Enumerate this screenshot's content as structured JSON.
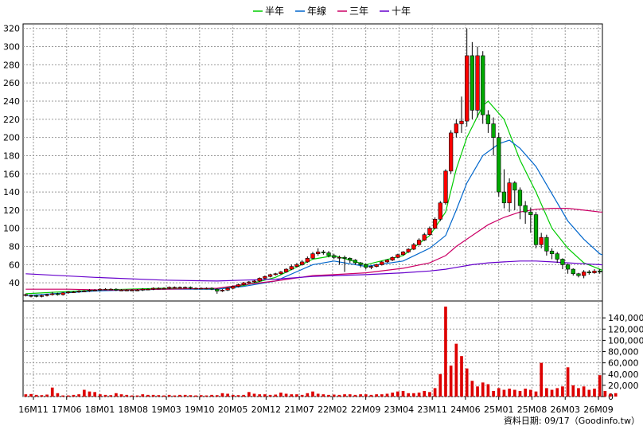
{
  "chart_data": [
    {
      "type": "candlestick",
      "title": "",
      "ylim": [
        20,
        325
      ],
      "y_ticks": [
        40,
        60,
        80,
        100,
        120,
        140,
        160,
        180,
        200,
        220,
        240,
        260,
        280,
        300,
        320
      ],
      "x_ticks": [
        "16M11",
        "17M06",
        "18M01",
        "18M08",
        "19M03",
        "19M10",
        "20M05",
        "20M12",
        "21M07",
        "22M02",
        "22M09",
        "23M04",
        "23M11",
        "24M06",
        "25M01",
        "25M08",
        "26M03",
        "26M09"
      ],
      "grid": true,
      "legend": {
        "position": "top-center",
        "entries": [
          {
            "name": "半年",
            "color": "#00cc00"
          },
          {
            "name": "年線",
            "color": "#0066cc"
          },
          {
            "name": "三年",
            "color": "#cc0066"
          },
          {
            "name": "十年",
            "color": "#6600cc"
          }
        ]
      },
      "candles": [
        [
          27,
          27,
          28,
          25
        ],
        [
          26,
          26,
          27,
          24
        ],
        [
          26,
          25,
          27,
          24
        ],
        [
          25,
          26,
          27,
          24
        ],
        [
          26,
          27,
          28,
          25
        ],
        [
          27,
          28,
          30,
          26
        ],
        [
          28,
          27,
          29,
          26
        ],
        [
          27,
          29,
          30,
          26
        ],
        [
          29,
          30,
          31,
          28
        ],
        [
          30,
          30,
          31,
          29
        ],
        [
          30,
          31,
          32,
          29
        ],
        [
          31,
          31,
          32,
          30
        ],
        [
          31,
          32,
          33,
          30
        ],
        [
          32,
          32,
          33,
          31
        ],
        [
          32,
          33,
          34,
          31
        ],
        [
          33,
          33,
          34,
          32
        ],
        [
          33,
          33,
          34,
          32
        ],
        [
          33,
          32,
          34,
          31
        ],
        [
          32,
          32,
          33,
          31
        ],
        [
          32,
          32,
          33,
          31
        ],
        [
          32,
          32,
          33,
          31
        ],
        [
          32,
          32,
          33,
          31
        ],
        [
          32,
          33,
          34,
          31
        ],
        [
          33,
          33,
          34,
          32
        ],
        [
          33,
          34,
          35,
          32
        ],
        [
          34,
          34,
          35,
          33
        ],
        [
          34,
          34,
          35,
          33
        ],
        [
          34,
          35,
          36,
          33
        ],
        [
          35,
          35,
          36,
          34
        ],
        [
          35,
          35,
          36,
          34
        ],
        [
          35,
          35,
          36,
          34
        ],
        [
          35,
          34,
          36,
          33
        ],
        [
          34,
          34,
          35,
          33
        ],
        [
          34,
          34,
          35,
          33
        ],
        [
          34,
          34,
          35,
          33
        ],
        [
          34,
          33,
          35,
          32
        ],
        [
          33,
          31,
          34,
          28
        ],
        [
          31,
          32,
          33,
          30
        ],
        [
          32,
          34,
          35,
          31
        ],
        [
          34,
          36,
          37,
          33
        ],
        [
          36,
          38,
          39,
          35
        ],
        [
          38,
          40,
          41,
          37
        ],
        [
          40,
          41,
          42,
          39
        ],
        [
          41,
          42,
          43,
          40
        ],
        [
          42,
          45,
          46,
          41
        ],
        [
          45,
          47,
          48,
          44
        ],
        [
          47,
          49,
          50,
          46
        ],
        [
          49,
          50,
          51,
          48
        ],
        [
          50,
          52,
          53,
          49
        ],
        [
          52,
          55,
          56,
          51
        ],
        [
          55,
          58,
          60,
          54
        ],
        [
          58,
          60,
          62,
          57
        ],
        [
          60,
          63,
          65,
          59
        ],
        [
          63,
          67,
          69,
          62
        ],
        [
          67,
          72,
          74,
          66
        ],
        [
          72,
          74,
          78,
          70
        ],
        [
          74,
          73,
          76,
          71
        ],
        [
          73,
          70,
          75,
          68
        ],
        [
          70,
          68,
          72,
          66
        ],
        [
          68,
          68,
          70,
          60
        ],
        [
          68,
          67,
          70,
          52
        ],
        [
          67,
          65,
          68,
          62
        ],
        [
          65,
          62,
          66,
          60
        ],
        [
          62,
          60,
          63,
          57
        ],
        [
          60,
          57,
          61,
          55
        ],
        [
          57,
          58,
          59,
          55
        ],
        [
          58,
          60,
          61,
          57
        ],
        [
          60,
          63,
          64,
          59
        ],
        [
          63,
          65,
          66,
          62
        ],
        [
          65,
          68,
          69,
          64
        ],
        [
          68,
          71,
          72,
          67
        ],
        [
          71,
          74,
          75,
          70
        ],
        [
          74,
          77,
          78,
          73
        ],
        [
          77,
          82,
          84,
          76
        ],
        [
          82,
          87,
          89,
          81
        ],
        [
          87,
          93,
          95,
          86
        ],
        [
          93,
          100,
          102,
          92
        ],
        [
          100,
          110,
          112,
          99
        ],
        [
          110,
          128,
          130,
          108
        ],
        [
          128,
          163,
          165,
          126
        ],
        [
          163,
          205,
          208,
          160
        ],
        [
          205,
          215,
          220,
          200
        ],
        [
          215,
          218,
          245,
          205
        ],
        [
          218,
          290,
          320,
          212
        ],
        [
          290,
          230,
          305,
          220
        ],
        [
          230,
          290,
          300,
          222
        ],
        [
          290,
          225,
          295,
          215
        ],
        [
          225,
          215,
          230,
          205
        ],
        [
          215,
          200,
          222,
          180
        ],
        [
          200,
          140,
          205,
          135
        ],
        [
          140,
          128,
          165,
          122
        ],
        [
          128,
          150,
          155,
          118
        ],
        [
          150,
          142,
          152,
          120
        ],
        [
          142,
          125,
          145,
          110
        ],
        [
          125,
          118,
          130,
          105
        ],
        [
          118,
          115,
          123,
          95
        ],
        [
          115,
          82,
          118,
          78
        ],
        [
          82,
          90,
          95,
          78
        ],
        [
          90,
          75,
          93,
          70
        ],
        [
          75,
          72,
          78,
          66
        ],
        [
          72,
          66,
          74,
          62
        ],
        [
          66,
          60,
          67,
          55
        ],
        [
          60,
          55,
          61,
          50
        ],
        [
          55,
          50,
          56,
          48
        ],
        [
          50,
          48,
          51,
          46
        ],
        [
          48,
          52,
          54,
          45
        ],
        [
          52,
          51,
          54,
          49
        ],
        [
          51,
          53,
          55,
          50
        ],
        [
          53,
          52,
          55,
          50
        ]
      ],
      "ma": {
        "半年": [
          [
            0,
            28
          ],
          [
            13,
            32
          ],
          [
            26,
            34
          ],
          [
            36,
            33
          ],
          [
            41,
            37
          ],
          [
            47,
            46
          ],
          [
            54,
            66
          ],
          [
            58,
            70
          ],
          [
            64,
            60
          ],
          [
            71,
            70
          ],
          [
            76,
            92
          ],
          [
            79,
            118
          ],
          [
            81,
            165
          ],
          [
            83,
            200
          ],
          [
            86,
            235
          ],
          [
            87,
            240
          ],
          [
            90,
            220
          ],
          [
            93,
            175
          ],
          [
            96,
            140
          ],
          [
            99,
            100
          ],
          [
            102,
            78
          ],
          [
            105,
            62
          ],
          [
            108,
            55
          ],
          [
            110,
            50
          ]
        ],
        "年線": [
          [
            0,
            26
          ],
          [
            13,
            31
          ],
          [
            26,
            33
          ],
          [
            36,
            33
          ],
          [
            41,
            36
          ],
          [
            47,
            42
          ],
          [
            54,
            60
          ],
          [
            58,
            64
          ],
          [
            64,
            58
          ],
          [
            71,
            64
          ],
          [
            76,
            78
          ],
          [
            79,
            92
          ],
          [
            81,
            120
          ],
          [
            83,
            150
          ],
          [
            86,
            180
          ],
          [
            89,
            193
          ],
          [
            91,
            197
          ],
          [
            93,
            188
          ],
          [
            96,
            168
          ],
          [
            99,
            138
          ],
          [
            102,
            108
          ],
          [
            105,
            88
          ],
          [
            108,
            72
          ],
          [
            110,
            67
          ],
          [
            111,
            66
          ]
        ],
        "三年": [
          [
            0,
            33
          ],
          [
            8,
            33
          ],
          [
            16,
            32
          ],
          [
            26,
            33
          ],
          [
            36,
            34
          ],
          [
            41,
            38
          ],
          [
            47,
            42
          ],
          [
            54,
            48
          ],
          [
            58,
            49
          ],
          [
            64,
            51
          ],
          [
            71,
            56
          ],
          [
            76,
            62
          ],
          [
            79,
            70
          ],
          [
            81,
            80
          ],
          [
            84,
            92
          ],
          [
            87,
            104
          ],
          [
            90,
            112
          ],
          [
            93,
            118
          ],
          [
            96,
            121
          ],
          [
            99,
            122
          ],
          [
            102,
            122
          ],
          [
            105,
            120
          ],
          [
            108,
            118
          ],
          [
            111,
            117
          ]
        ],
        "十年": [
          [
            0,
            50
          ],
          [
            13,
            46
          ],
          [
            26,
            43
          ],
          [
            36,
            42
          ],
          [
            41,
            43
          ],
          [
            47,
            44
          ],
          [
            54,
            47
          ],
          [
            58,
            48
          ],
          [
            64,
            49
          ],
          [
            71,
            51
          ],
          [
            76,
            53
          ],
          [
            79,
            55
          ],
          [
            81,
            57
          ],
          [
            84,
            60
          ],
          [
            87,
            62
          ],
          [
            90,
            63
          ],
          [
            93,
            64
          ],
          [
            96,
            64
          ],
          [
            99,
            63
          ],
          [
            102,
            62
          ],
          [
            105,
            61
          ],
          [
            108,
            60
          ],
          [
            111,
            59
          ]
        ]
      }
    },
    {
      "type": "bar",
      "title": "",
      "ylim": [
        0,
        170000
      ],
      "y_ticks": [
        "0",
        "20,000",
        "40,000",
        "60,000",
        "80,000",
        "100,000",
        "120,000",
        "140,000"
      ],
      "y_tick_values": [
        0,
        20000,
        40000,
        60000,
        80000,
        100000,
        120000,
        140000
      ],
      "color": "#dd0000",
      "values": [
        4000,
        4500,
        3000,
        2500,
        3500,
        16000,
        6000,
        2000,
        2000,
        3000,
        4000,
        12000,
        9000,
        8000,
        4000,
        3000,
        2500,
        6000,
        4000,
        3000,
        2000,
        2000,
        4000,
        3000,
        3000,
        2500,
        2000,
        3000,
        2000,
        3000,
        3000,
        2500,
        2000,
        2500,
        2000,
        3000,
        2500,
        6000,
        5000,
        3000,
        2500,
        3000,
        8000,
        5000,
        4000,
        4000,
        3000,
        3500,
        7000,
        5000,
        4000,
        4000,
        3000,
        6000,
        9000,
        5000,
        4000,
        3000,
        3500,
        3000,
        4000,
        4000,
        3000,
        4000,
        4000,
        3000,
        4000,
        4000,
        5000,
        7000,
        9000,
        10000,
        6000,
        6000,
        7000,
        10000,
        8000,
        15000,
        40000,
        160000,
        55000,
        94000,
        72000,
        50000,
        28000,
        18000,
        25000,
        22000,
        10000,
        15000,
        12000,
        14000,
        12000,
        10000,
        14000,
        12000,
        9000,
        60000,
        15000,
        12000,
        15000,
        18000,
        52000,
        20000,
        15000,
        18000,
        12000,
        14000,
        38000,
        10000,
        5000,
        6000
      ]
    }
  ],
  "footer": "資料日期: 09/17（Goodinfo.tw）"
}
